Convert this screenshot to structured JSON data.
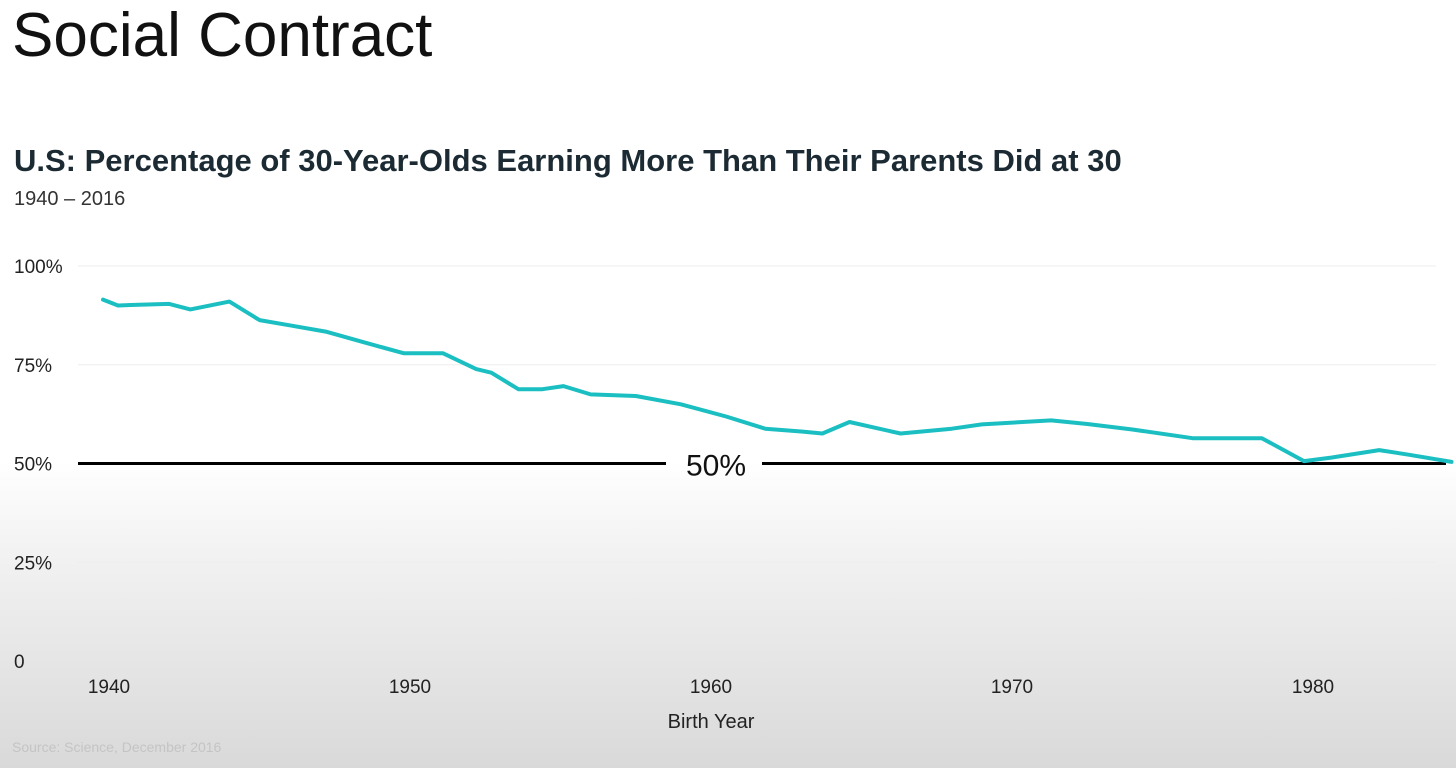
{
  "slide": {
    "title": "Social Contract"
  },
  "source_note": "Source: Science, December 2016",
  "colors": {
    "line": "#1bbfc2",
    "reference_line": "#000000",
    "gridline": "#eeeeee"
  },
  "chart_data": {
    "type": "line",
    "title": "U.S: Percentage of 30-Year-Olds Earning More Than Their Parents Did at 30",
    "subtitle": "1940 – 2016",
    "xlabel": "Birth Year",
    "ylabel": "",
    "xlim": [
      1939,
      1985
    ],
    "ylim": [
      0,
      100
    ],
    "x_ticks": [
      1940,
      1950,
      1960,
      1970,
      1980
    ],
    "y_ticks": [
      {
        "value": 0,
        "label": "0"
      },
      {
        "value": 25,
        "label": "25%"
      },
      {
        "value": 50,
        "label": "50%"
      },
      {
        "value": 75,
        "label": "75%"
      },
      {
        "value": 100,
        "label": "100%"
      }
    ],
    "grid": true,
    "reference_line": {
      "y": 50,
      "label": "50%"
    },
    "series": [
      {
        "x": [
          1939.8,
          1940.3,
          1941,
          1942,
          1942.7,
          1944,
          1945,
          1946,
          1947.2,
          1948.5,
          1949.8,
          1950.5,
          1951.1,
          1952.2,
          1952.7,
          1953.6,
          1954.4,
          1955.1,
          1956,
          1957.5,
          1959,
          1960.5,
          1961.8,
          1963,
          1963.7,
          1964.6,
          1966.3,
          1968,
          1969,
          1971.3,
          1972.5,
          1974,
          1976,
          1977.5,
          1978.3,
          1979.7,
          1980.6,
          1982.2,
          1983.2,
          1984.6
        ],
        "y": [
          91.5,
          90,
          90.2,
          90.4,
          89,
          91,
          86.3,
          85,
          83.4,
          80.6,
          77.9,
          77.9,
          77.9,
          73.9,
          73,
          68.8,
          68.8,
          69.6,
          67.5,
          67.1,
          65,
          61.9,
          58.8,
          58.1,
          57.6,
          60.5,
          57.6,
          58.8,
          59.9,
          60.9,
          60,
          58.6,
          56.4,
          56.4,
          56.4,
          50.6,
          51.5,
          53.4,
          52.2,
          50.4
        ]
      }
    ]
  }
}
